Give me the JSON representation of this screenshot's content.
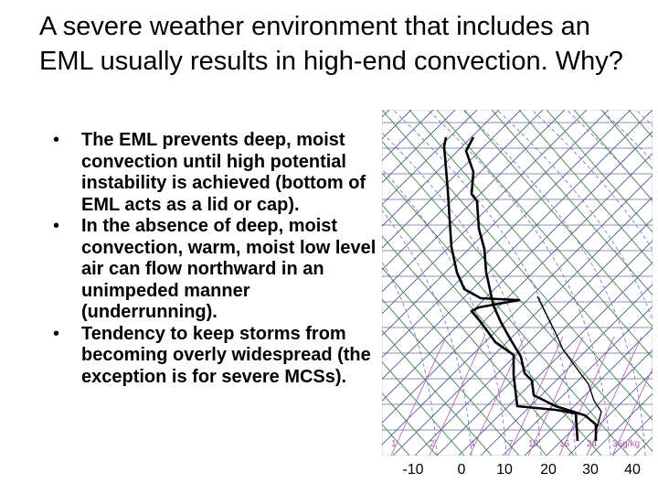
{
  "slide": {
    "title": "A severe weather environment that includes an EML usually results in high-end convection. Why?",
    "bullet_marker": "•",
    "bullets": [
      "The EML prevents deep, moist convection until high potential instability is achieved (bottom of EML acts as a lid or cap).",
      "In the absence of deep, moist convection, warm, moist low level air can flow northward in an unimpeded manner (underrunning).",
      "Tendency to keep storms from becoming overly widespread (the exception is for severe MCSs)."
    ]
  },
  "sounding": {
    "temperature_ticks": [
      "-10",
      "0",
      "10",
      "20",
      "30",
      "40"
    ],
    "mixing_ratio_labels": [
      "1",
      "2",
      "4",
      "7",
      "10",
      "16",
      "24",
      "36"
    ],
    "mixing_ratio_unit": "g/kg",
    "colors": {
      "isotherm": "#3a4a8a",
      "dry_adiabat": "#3a8a4a",
      "moist_adiabat": "#7a6ab0",
      "mixing_ratio": "#b05ab0",
      "isobar": "#6a6aa0",
      "profile": "#000000"
    }
  }
}
